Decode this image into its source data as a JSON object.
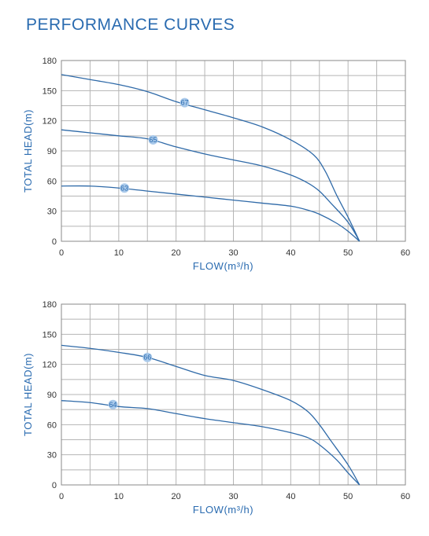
{
  "header": {
    "title": "PERFORMANCE CURVES"
  },
  "colors": {
    "accent": "#2a6bb0",
    "curve": "#2f6aa8",
    "grid": "#b5b5b5",
    "marker_fill": "#a9c9ea"
  },
  "chart_data": [
    {
      "type": "line",
      "title": "",
      "xlabel": "FLOW(m³/h)",
      "ylabel": "TOTAL HEAD(m)",
      "xlim": [
        0,
        60
      ],
      "ylim": [
        0,
        180
      ],
      "xticks": [
        0,
        10,
        20,
        30,
        40,
        50,
        60
      ],
      "yticks": [
        0,
        30,
        60,
        90,
        120,
        150,
        180
      ],
      "grid": true,
      "series": [
        {
          "name": "67",
          "label_at": [
            21.5,
            138
          ],
          "points": [
            [
              0,
              166
            ],
            [
              5,
              161
            ],
            [
              10,
              156
            ],
            [
              15,
              149
            ],
            [
              20,
              139
            ],
            [
              25,
              131
            ],
            [
              30,
              123
            ],
            [
              35,
              114
            ],
            [
              40,
              101
            ],
            [
              44,
              86
            ],
            [
              46,
              70
            ],
            [
              48,
              46
            ],
            [
              50,
              24
            ],
            [
              52,
              0
            ]
          ]
        },
        {
          "name": "65",
          "label_at": [
            16,
            101
          ],
          "points": [
            [
              0,
              111
            ],
            [
              5,
              108
            ],
            [
              10,
              105
            ],
            [
              15,
              102
            ],
            [
              20,
              94
            ],
            [
              25,
              87
            ],
            [
              30,
              81
            ],
            [
              35,
              75
            ],
            [
              40,
              66
            ],
            [
              43,
              58
            ],
            [
              45,
              50
            ],
            [
              47,
              38
            ],
            [
              50,
              19
            ],
            [
              52,
              0
            ]
          ]
        },
        {
          "name": "63",
          "label_at": [
            11,
            53
          ],
          "points": [
            [
              0,
              55
            ],
            [
              5,
              55
            ],
            [
              10,
              53
            ],
            [
              15,
              50
            ],
            [
              20,
              47
            ],
            [
              25,
              44
            ],
            [
              30,
              41
            ],
            [
              35,
              38
            ],
            [
              40,
              35
            ],
            [
              43,
              31
            ],
            [
              45,
              27
            ],
            [
              48,
              18
            ],
            [
              50,
              10
            ],
            [
              52,
              0
            ]
          ]
        }
      ]
    },
    {
      "type": "line",
      "title": "",
      "xlabel": "FLOW(m³/h)",
      "ylabel": "TOTAL HEAD(m)",
      "xlim": [
        0,
        60
      ],
      "ylim": [
        0,
        180
      ],
      "xticks": [
        0,
        10,
        20,
        30,
        40,
        50,
        60
      ],
      "yticks": [
        0,
        30,
        60,
        90,
        120,
        150,
        180
      ],
      "grid": true,
      "series": [
        {
          "name": "66",
          "label_at": [
            15,
            127
          ],
          "points": [
            [
              0,
              139
            ],
            [
              5,
              136
            ],
            [
              10,
              132
            ],
            [
              15,
              127
            ],
            [
              20,
              118
            ],
            [
              25,
              109
            ],
            [
              30,
              104
            ],
            [
              35,
              95
            ],
            [
              40,
              84
            ],
            [
              43,
              73
            ],
            [
              45,
              60
            ],
            [
              47,
              44
            ],
            [
              50,
              20
            ],
            [
              52,
              0
            ]
          ]
        },
        {
          "name": "64",
          "label_at": [
            9,
            80
          ],
          "points": [
            [
              0,
              84
            ],
            [
              5,
              82
            ],
            [
              10,
              78
            ],
            [
              15,
              76
            ],
            [
              20,
              71
            ],
            [
              25,
              66
            ],
            [
              30,
              62
            ],
            [
              35,
              58
            ],
            [
              40,
              52
            ],
            [
              43,
              47
            ],
            [
              45,
              40
            ],
            [
              48,
              25
            ],
            [
              50,
              12
            ],
            [
              52,
              0
            ]
          ]
        }
      ]
    }
  ]
}
